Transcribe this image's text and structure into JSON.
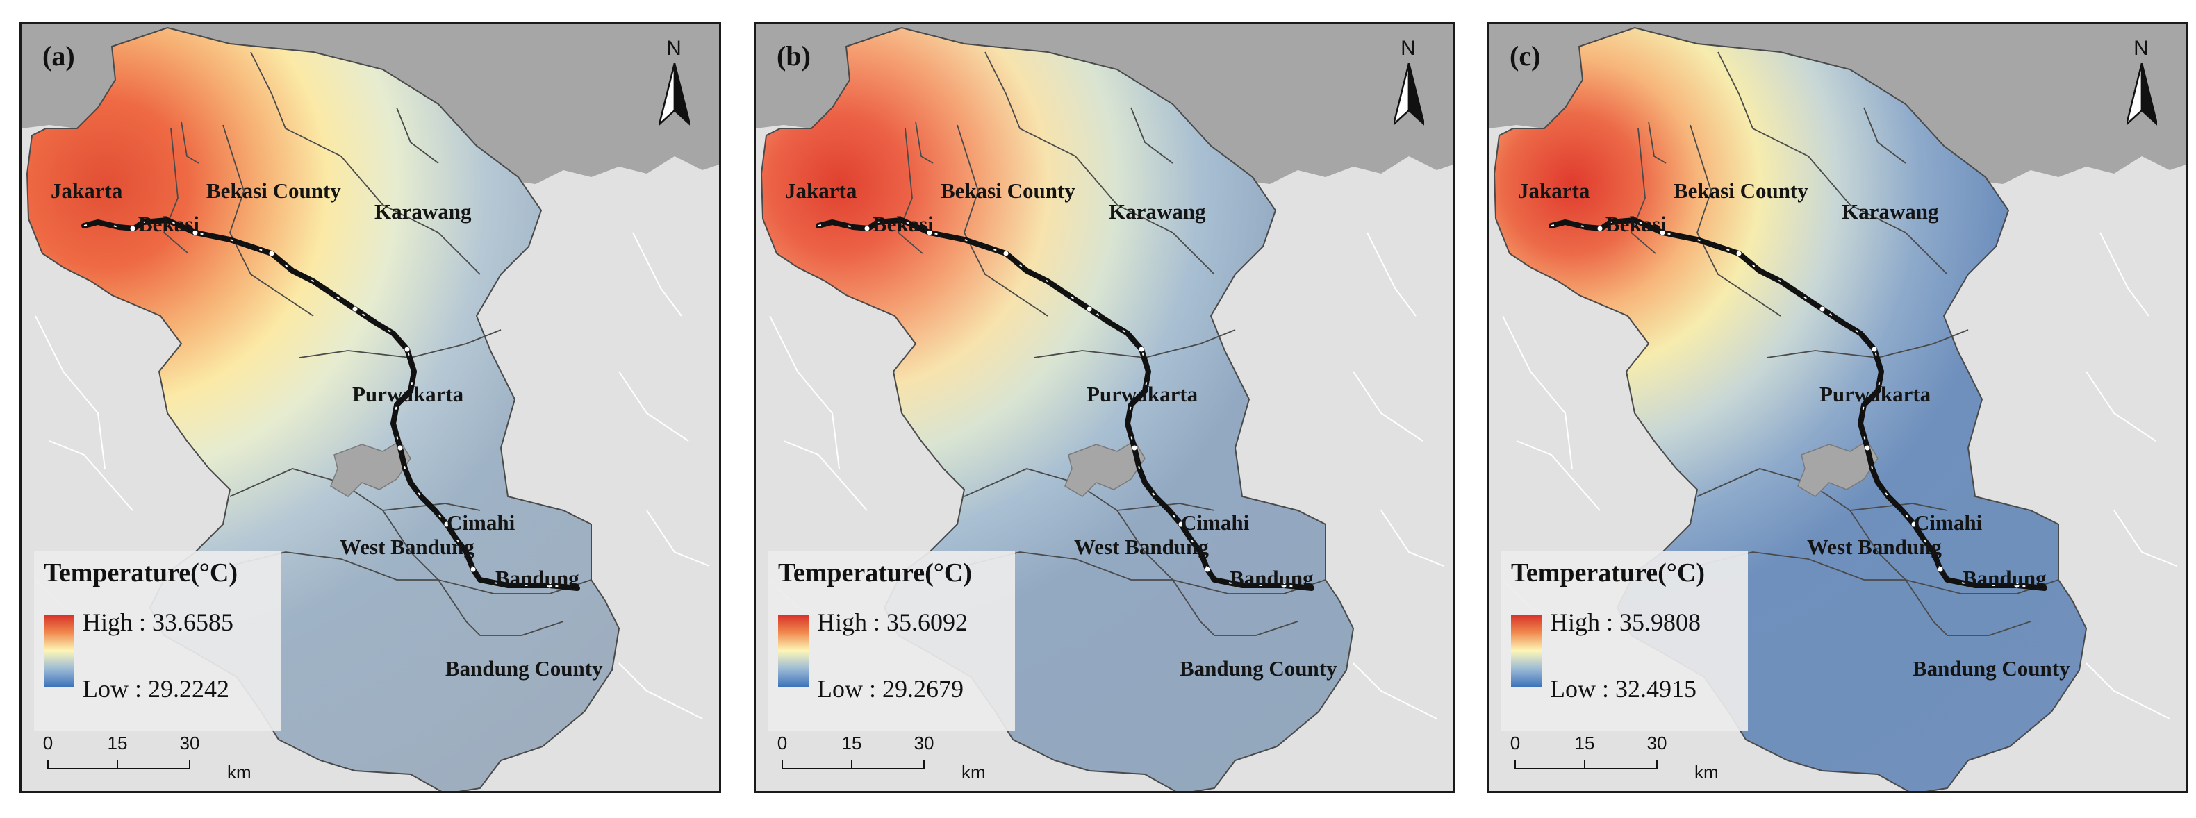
{
  "panels": [
    {
      "label": "(a)",
      "north": "N",
      "hot_level": 1.0,
      "gradient": [
        {
          "offset": "0%",
          "color": "#e24f35"
        },
        {
          "offset": "12%",
          "color": "#ee6a44"
        },
        {
          "offset": "22%",
          "color": "#f6ad71"
        },
        {
          "offset": "32%",
          "color": "#fbe9a6"
        },
        {
          "offset": "42%",
          "color": "#e6ecd0"
        },
        {
          "offset": "55%",
          "color": "#b6c8d4"
        },
        {
          "offset": "68%",
          "color": "#9fb3c6"
        },
        {
          "offset": "100%",
          "color": "#9eaebf"
        }
      ],
      "cities": [
        "Jakarta",
        "Bekasi",
        "Bekasi County",
        "Karawang",
        "Purwakarta",
        "Cimahi",
        "West Bandung",
        "Bandung",
        "Bandung County"
      ],
      "legend": {
        "title": "Temperature(°C)",
        "high": "High : 33.6585",
        "low": "Low : 29.2242"
      },
      "scale": {
        "ticks": [
          "0",
          "15",
          "30"
        ],
        "unit": "km"
      }
    },
    {
      "label": "(b)",
      "north": "N",
      "hot_level": 0.85,
      "gradient": [
        {
          "offset": "0%",
          "color": "#e0412f"
        },
        {
          "offset": "10%",
          "color": "#ec6247"
        },
        {
          "offset": "20%",
          "color": "#f5a274"
        },
        {
          "offset": "30%",
          "color": "#f7e3ad"
        },
        {
          "offset": "40%",
          "color": "#d9e4d2"
        },
        {
          "offset": "52%",
          "color": "#a9bfd2"
        },
        {
          "offset": "65%",
          "color": "#93a9c2"
        },
        {
          "offset": "100%",
          "color": "#93a7bd"
        }
      ],
      "cities": [
        "Jakarta",
        "Bekasi",
        "Bekasi County",
        "Karawang",
        "Purwakarta",
        "Cimahi",
        "West Bandung",
        "Bandung",
        "Bandung County"
      ],
      "legend": {
        "title": "Temperature(°C)",
        "high": "High : 35.6092",
        "low": "Low : 29.2679"
      },
      "scale": {
        "ticks": [
          "0",
          "15",
          "30"
        ],
        "unit": "km"
      }
    },
    {
      "label": "(c)",
      "north": "N",
      "hot_level": 0.7,
      "gradient": [
        {
          "offset": "0%",
          "color": "#e03b2e"
        },
        {
          "offset": "10%",
          "color": "#ec6a48"
        },
        {
          "offset": "18%",
          "color": "#f7b57a"
        },
        {
          "offset": "27%",
          "color": "#f6ecae"
        },
        {
          "offset": "38%",
          "color": "#c8d7d6"
        },
        {
          "offset": "50%",
          "color": "#8eaacb"
        },
        {
          "offset": "62%",
          "color": "#6f90bd"
        },
        {
          "offset": "100%",
          "color": "#7190bb"
        }
      ],
      "cities": [
        "Jakarta",
        "Bekasi",
        "Bekasi County",
        "Karawang",
        "Purwakarta",
        "Cimahi",
        "West Bandung",
        "Bandung",
        "Bandung County"
      ],
      "legend": {
        "title": "Temperature(°C)",
        "high": "High : 35.9808",
        "low": "Low : 32.4915"
      },
      "scale": {
        "ticks": [
          "0",
          "15",
          "30"
        ],
        "unit": "km"
      }
    }
  ]
}
